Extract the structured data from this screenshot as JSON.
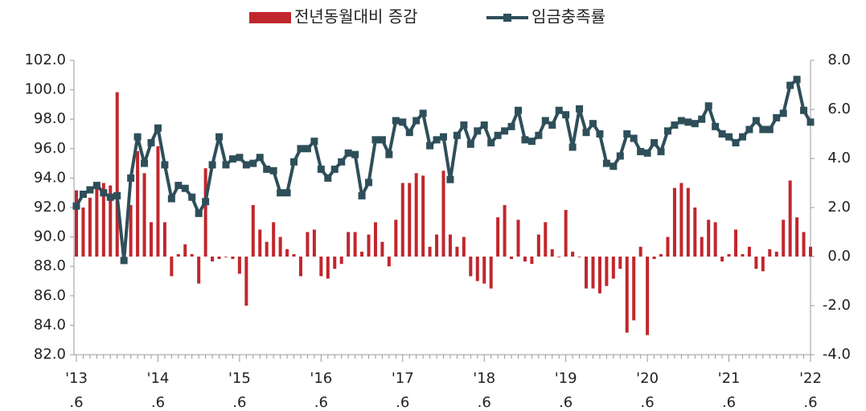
{
  "chart_data": {
    "type": "bar-line",
    "categories": [
      "'13\n.6",
      null,
      null,
      null,
      null,
      null,
      null,
      null,
      null,
      null,
      null,
      null,
      "'14\n.6",
      null,
      null,
      null,
      null,
      null,
      null,
      null,
      null,
      null,
      null,
      null,
      "'15\n.6",
      null,
      null,
      null,
      null,
      null,
      null,
      null,
      null,
      null,
      null,
      null,
      "'16\n.6",
      null,
      null,
      null,
      null,
      null,
      null,
      null,
      null,
      null,
      null,
      null,
      "'17\n.6",
      null,
      null,
      null,
      null,
      null,
      null,
      null,
      null,
      null,
      null,
      null,
      "'18\n.6",
      null,
      null,
      null,
      null,
      null,
      null,
      null,
      null,
      null,
      null,
      null,
      "'19\n.6",
      null,
      null,
      null,
      null,
      null,
      null,
      null,
      null,
      null,
      null,
      null,
      "'20\n.6",
      null,
      null,
      null,
      null,
      null,
      null,
      null,
      null,
      null,
      null,
      null,
      "'21\n.6",
      null,
      null,
      null,
      null,
      null,
      null,
      null,
      null,
      null,
      null,
      null,
      "'22\n.6"
    ],
    "series": [
      {
        "name": "전년동월대비 증감",
        "type": "bar",
        "axis": "y2",
        "color": "#c0272d",
        "values": [
          2.7,
          2.0,
          2.4,
          2.8,
          3.0,
          2.9,
          6.7,
          0.3,
          2.1,
          4.3,
          3.4,
          1.4,
          4.5,
          1.4,
          -0.8,
          0.1,
          0.5,
          0.1,
          -1.1,
          3.6,
          -0.2,
          -0.1,
          0.0,
          -0.1,
          -0.7,
          -2.0,
          2.1,
          1.1,
          0.6,
          1.4,
          0.8,
          0.3,
          0.1,
          -0.8,
          1.0,
          1.1,
          -0.8,
          -0.9,
          -0.5,
          -0.3,
          1.0,
          1.0,
          0.2,
          0.9,
          1.4,
          0.6,
          -0.4,
          1.5,
          3.0,
          3.0,
          3.4,
          3.3,
          0.4,
          0.9,
          3.5,
          0.9,
          0.4,
          0.8,
          -0.8,
          -1.0,
          -1.1,
          -1.3,
          1.6,
          2.1,
          -0.1,
          1.5,
          -0.2,
          -0.3,
          0.9,
          1.4,
          0.3,
          0.0,
          1.9,
          0.2,
          0.0,
          -1.3,
          -1.3,
          -1.5,
          -1.2,
          -0.9,
          -0.5,
          -3.1,
          -2.6,
          0.4,
          -3.2,
          -0.1,
          0.1,
          0.8,
          2.8,
          3.0,
          2.8,
          2.0,
          0.8,
          1.5,
          1.4,
          -0.2,
          0.1,
          1.1,
          0.1,
          0.4,
          -0.5,
          -0.6,
          0.3,
          0.2,
          1.5,
          3.1,
          1.6,
          1.0,
          0.4
        ]
      },
      {
        "name": "임금충족률",
        "type": "line",
        "color": "#2e4f5a",
        "values": [
          92.1,
          92.9,
          93.2,
          93.5,
          93.0,
          92.7,
          92.8,
          88.4,
          94.0,
          96.8,
          95.0,
          96.4,
          97.4,
          94.9,
          92.6,
          93.5,
          93.3,
          92.7,
          91.6,
          92.4,
          94.9,
          96.8,
          94.9,
          95.3,
          95.4,
          94.9,
          95.0,
          95.4,
          94.6,
          94.5,
          93.0,
          93.0,
          95.1,
          96.0,
          96.0,
          96.5,
          94.6,
          94.0,
          94.6,
          95.1,
          95.7,
          95.6,
          92.8,
          93.7,
          96.6,
          96.6,
          95.6,
          97.9,
          97.8,
          97.1,
          97.9,
          98.4,
          96.2,
          96.6,
          96.8,
          93.9,
          96.9,
          97.6,
          96.3,
          97.2,
          97.6,
          96.4,
          96.9,
          97.2,
          97.5,
          98.6,
          96.6,
          96.5,
          96.9,
          97.9,
          97.6,
          98.6,
          98.3,
          96.1,
          98.7,
          97.1,
          97.7,
          97.0,
          95.0,
          94.8,
          95.5,
          97.0,
          96.7,
          95.8,
          95.7,
          96.4,
          95.8,
          97.2,
          97.6,
          97.9,
          97.8,
          97.7,
          98.0,
          98.9,
          97.5,
          97.0,
          96.8,
          96.4,
          96.8,
          97.3,
          97.9,
          97.3,
          97.3,
          98.1,
          98.4,
          100.3,
          100.7,
          98.6,
          97.8
        ]
      }
    ],
    "ylim": [
      82,
      102
    ],
    "yticks": [
      {
        "value": 82,
        "label": "82.0"
      },
      {
        "value": 84,
        "label": "84.0"
      },
      {
        "value": 86,
        "label": "86.0"
      },
      {
        "value": 88,
        "label": "88.0"
      },
      {
        "value": 90,
        "label": "90.0"
      },
      {
        "value": 92,
        "label": "92.0"
      },
      {
        "value": 94,
        "label": "94.0"
      },
      {
        "value": 96,
        "label": "96.0"
      },
      {
        "value": 98,
        "label": "98.0"
      },
      {
        "value": 100,
        "label": "100.0"
      },
      {
        "value": 102,
        "label": "102.0"
      }
    ],
    "y2lim": [
      -4,
      8
    ],
    "y2ticks": [
      {
        "value": -4,
        "label": "-4.0"
      },
      {
        "value": -2,
        "label": "-2.0"
      },
      {
        "value": 0,
        "label": "0.0"
      },
      {
        "value": 2,
        "label": "2.0"
      },
      {
        "value": 4,
        "label": "4.0"
      },
      {
        "value": 6,
        "label": "6.0"
      },
      {
        "value": 8,
        "label": "8.0"
      }
    ],
    "legend": "top"
  }
}
